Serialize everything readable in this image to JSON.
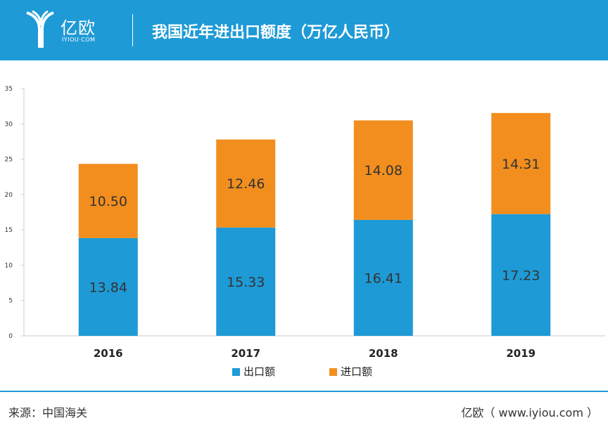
{
  "header": {
    "logo_text": "亿欧",
    "logo_sub": "IYIOU·COM",
    "title": "我国近年进出口额度（万亿人民币）"
  },
  "footer": {
    "source": "来源：中国海关",
    "brand": "亿欧（ www.iyiou.com ）"
  },
  "colors": {
    "export": "#1e9ad6",
    "import": "#f28e1e",
    "header": "#1e9ad6"
  },
  "chart_data": {
    "type": "bar",
    "stacked": true,
    "categories": [
      "2016",
      "2017",
      "2018",
      "2019"
    ],
    "series": [
      {
        "name": "出口额",
        "values": [
          13.84,
          15.33,
          16.41,
          17.23
        ],
        "labels": [
          "13.84",
          "15.33",
          "16.41",
          "17.23"
        ]
      },
      {
        "name": "进口额",
        "values": [
          10.5,
          12.46,
          14.08,
          14.31
        ],
        "labels": [
          "10.50",
          "12.46",
          "14.08",
          "14.31"
        ]
      }
    ],
    "yticks": [
      "0",
      "5",
      "10",
      "15",
      "20",
      "25",
      "30",
      "35"
    ],
    "ylim": [
      0,
      35
    ],
    "grid": false,
    "legend": "bottom"
  }
}
